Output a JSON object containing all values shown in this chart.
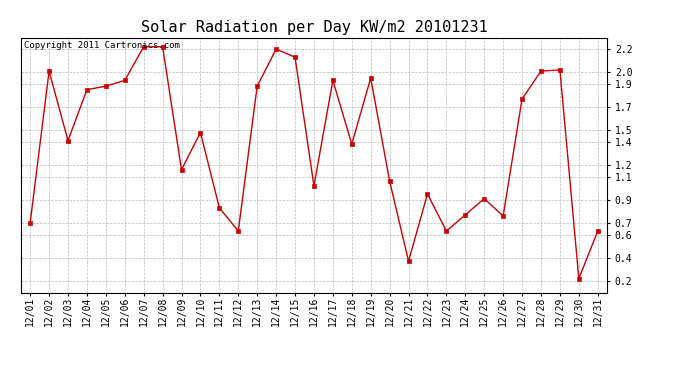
{
  "title": "Solar Radiation per Day KW/m2 20101231",
  "copyright_text": "Copyright 2011 Cartronics.com",
  "dates": [
    "12/01",
    "12/02",
    "12/03",
    "12/04",
    "12/05",
    "12/06",
    "12/07",
    "12/08",
    "12/09",
    "12/10",
    "12/11",
    "12/12",
    "12/13",
    "12/14",
    "12/15",
    "12/16",
    "12/17",
    "12/18",
    "12/19",
    "12/20",
    "12/21",
    "12/22",
    "12/23",
    "12/24",
    "12/25",
    "12/26",
    "12/27",
    "12/28",
    "12/29",
    "12/30",
    "12/31"
  ],
  "values": [
    0.7,
    2.01,
    1.41,
    1.85,
    1.88,
    1.93,
    2.22,
    2.22,
    1.16,
    1.48,
    0.83,
    0.63,
    1.88,
    2.2,
    2.13,
    1.02,
    1.93,
    1.38,
    1.95,
    1.06,
    0.37,
    0.95,
    0.63,
    0.77,
    0.91,
    0.76,
    1.77,
    2.01,
    2.02,
    0.22,
    0.63
  ],
  "line_color": "#cc0000",
  "marker_color": "#cc0000",
  "bg_color": "#ffffff",
  "grid_color": "#bbbbbb",
  "ylim_min": 0.1,
  "ylim_max": 2.3,
  "yticks": [
    0.2,
    0.4,
    0.6,
    0.7,
    0.9,
    1.1,
    1.2,
    1.4,
    1.5,
    1.7,
    1.9,
    2.0,
    2.2
  ],
  "title_fontsize": 11,
  "copyright_fontsize": 6.5,
  "tick_fontsize": 7
}
